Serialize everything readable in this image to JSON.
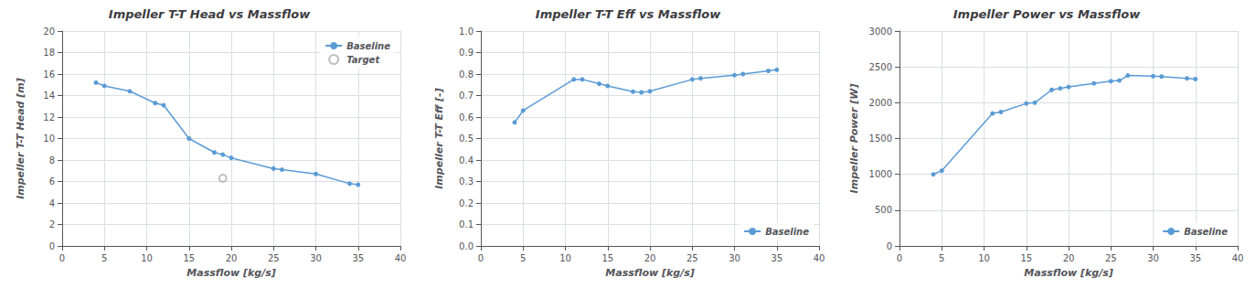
{
  "chart_data": [
    {
      "type": "line",
      "title": "Impeller T-T Head vs Massflow",
      "xlabel": "Massflow [kg/s]",
      "ylabel": "Impeller T-T Head [m]",
      "xlim": [
        0,
        40
      ],
      "ylim": [
        0,
        20
      ],
      "xticks": [
        0,
        5,
        10,
        15,
        20,
        25,
        30,
        35,
        40
      ],
      "yticks": [
        0,
        2,
        4,
        6,
        8,
        10,
        12,
        14,
        16,
        18,
        20
      ],
      "grid": true,
      "legend": "upper right",
      "series": [
        {
          "name": "Baseline",
          "type": "line",
          "color": "#5B9BD5",
          "marker": "circle",
          "x": [
            4,
            5,
            8,
            11,
            12,
            15,
            18,
            19,
            20,
            25,
            26,
            30,
            34,
            35
          ],
          "values": [
            15.2,
            14.9,
            14.4,
            13.3,
            13.1,
            10.0,
            8.7,
            8.5,
            8.2,
            7.2,
            7.1,
            6.7,
            5.8,
            5.7
          ]
        },
        {
          "name": "Target",
          "type": "scatter",
          "color": "#b0b0b0",
          "marker": "empty_circle",
          "x": [
            19
          ],
          "values": [
            6.3
          ]
        }
      ]
    },
    {
      "type": "line",
      "title": "Impeller T-T Eff vs Massflow",
      "xlabel": "Massflow [kg/s]",
      "ylabel": "Impeller T-T Eff [-]",
      "xlim": [
        0,
        40
      ],
      "ylim": [
        0,
        1
      ],
      "xticks": [
        0,
        5,
        10,
        15,
        20,
        25,
        30,
        35,
        40
      ],
      "yticks": [
        {
          "value": 0,
          "label": "0.0"
        },
        0.1,
        0.2,
        0.3,
        0.4,
        0.5,
        0.6,
        0.7,
        0.8,
        0.9,
        {
          "value": 1.0,
          "label": "1.0"
        }
      ],
      "grid": true,
      "legend": "lower right",
      "series": [
        {
          "name": "Baseline",
          "type": "line",
          "color": "#5B9BD5",
          "marker": "circle",
          "x": [
            4,
            5,
            11,
            12,
            14,
            15,
            18,
            19,
            20,
            25,
            26,
            30,
            31,
            34,
            35
          ],
          "values": [
            0.575,
            0.63,
            0.775,
            0.775,
            0.755,
            0.745,
            0.718,
            0.715,
            0.72,
            0.775,
            0.78,
            0.795,
            0.8,
            0.815,
            0.82
          ]
        }
      ]
    },
    {
      "type": "line",
      "title": "Impeller Power vs Massflow",
      "xlabel": "Massflow [kg/s]",
      "ylabel": "Impeller Power [W]",
      "xlim": [
        0,
        40
      ],
      "ylim": [
        0,
        3000
      ],
      "xticks": [
        0,
        5,
        10,
        15,
        20,
        25,
        30,
        35,
        40
      ],
      "yticks": [
        0,
        500,
        1000,
        1500,
        2000,
        2500,
        3000
      ],
      "grid": true,
      "legend": "lower right",
      "series": [
        {
          "name": "Baseline",
          "type": "line",
          "color": "#5B9BD5",
          "marker": "circle",
          "x": [
            4,
            5,
            11,
            12,
            15,
            16,
            18,
            19,
            20,
            23,
            25,
            26,
            27,
            30,
            31,
            34,
            35
          ],
          "values": [
            1000,
            1050,
            1850,
            1870,
            1990,
            2000,
            2180,
            2200,
            2220,
            2270,
            2300,
            2310,
            2380,
            2370,
            2365,
            2340,
            2330
          ]
        }
      ]
    }
  ]
}
